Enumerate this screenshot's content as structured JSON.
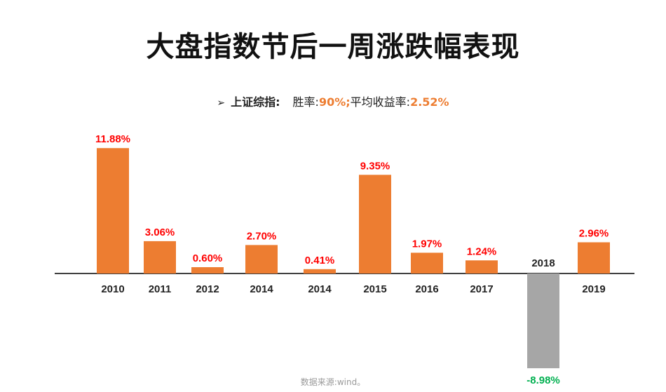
{
  "title": "大盘指数节后一周涨跌幅表现",
  "subtitle": {
    "arrow": "➢",
    "index_name": "上证综指:",
    "winrate_label": "胜率:",
    "winrate_value": "90%;",
    "avg_label": "平均收益率:",
    "avg_value": "2.52%"
  },
  "source": "数据来源:wind。",
  "colors": {
    "positive_bar": "#ED7D31",
    "negative_bar": "#A6A6A6",
    "positive_label": "#FF0000",
    "negative_label": "#00B050",
    "axis": "#000000"
  },
  "chart_data": {
    "type": "bar",
    "categories": [
      "2010",
      "2011",
      "2012",
      "2014",
      "2014",
      "2015",
      "2016",
      "2017",
      "2018",
      "2019"
    ],
    "values": [
      11.88,
      3.06,
      0.6,
      2.7,
      0.41,
      9.35,
      1.97,
      1.24,
      -8.98,
      2.96
    ],
    "data_labels": [
      "11.88%",
      "3.06%",
      "0.60%",
      "2.70%",
      "0.41%",
      "9.35%",
      "1.97%",
      "1.24%",
      "-8.98%",
      "2.96%"
    ],
    "title": "大盘指数节后一周涨跌幅表现",
    "xlabel": "",
    "ylabel": "",
    "ylim": [
      -8.98,
      11.88
    ],
    "grid": false,
    "legend": "none"
  }
}
